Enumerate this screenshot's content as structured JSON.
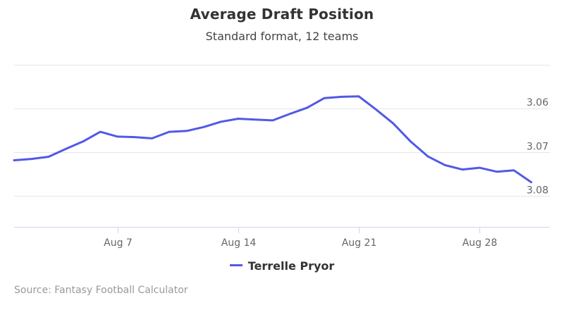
{
  "chart_data": {
    "type": "line",
    "title": "Average Draft Position",
    "subtitle": "Standard format, 12 teams",
    "source": "Source: Fantasy Football Calculator",
    "x": [
      "Aug 1",
      "Aug 2",
      "Aug 3",
      "Aug 4",
      "Aug 5",
      "Aug 6",
      "Aug 7",
      "Aug 8",
      "Aug 9",
      "Aug 10",
      "Aug 11",
      "Aug 12",
      "Aug 13",
      "Aug 14",
      "Aug 15",
      "Aug 16",
      "Aug 17",
      "Aug 18",
      "Aug 19",
      "Aug 20",
      "Aug 21",
      "Aug 22",
      "Aug 23",
      "Aug 24",
      "Aug 25",
      "Aug 26",
      "Aug 27",
      "Aug 28",
      "Aug 29",
      "Aug 30",
      "Aug 31"
    ],
    "x_ticks": [
      "Aug 7",
      "Aug 14",
      "Aug 21",
      "Aug 28"
    ],
    "y_ticks": [
      "3.06",
      "3.07",
      "3.08"
    ],
    "ylim": [
      3.087,
      3.05
    ],
    "y_reversed": true,
    "grid": true,
    "legend_position": "bottom-center",
    "series": [
      {
        "name": "Terrelle Pryor",
        "color": "#5159e6",
        "values": [
          3.0718,
          3.0715,
          3.071,
          3.0692,
          3.0675,
          3.0653,
          3.0664,
          3.0665,
          3.0668,
          3.0653,
          3.0651,
          3.0642,
          3.063,
          3.0623,
          3.0625,
          3.0627,
          3.0612,
          3.0598,
          3.0576,
          3.0573,
          3.0572,
          3.0602,
          3.0634,
          3.0675,
          3.0709,
          3.0729,
          3.0739,
          3.0735,
          3.0744,
          3.0741,
          3.0768
        ]
      }
    ]
  }
}
